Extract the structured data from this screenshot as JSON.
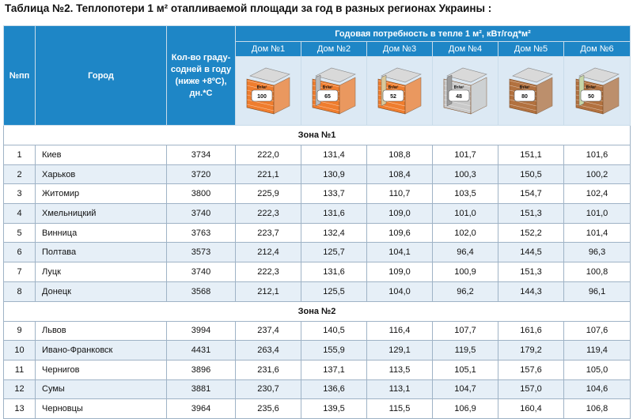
{
  "title": "Таблица №2. Теплопотери 1 м² отапливаемой площади за год в разных регионах Украины :",
  "header": {
    "col_num": "№пп",
    "col_city": "Город",
    "col_degree": "Кол-во граду-содней в году (ниже +8ºС), дн.*С",
    "col_demand": "Годовая потребность в тепле 1 м², кВт/год*м²",
    "houses": [
      {
        "label": "Дом №1",
        "value": "100",
        "unit": "Вт/м²",
        "wall_color": "#ef7d2e",
        "insulation_color": ""
      },
      {
        "label": "Дом №2",
        "value": "65",
        "unit": "Вт/м²",
        "wall_color": "#ef7d2e",
        "insulation_color": "#b9bcbe"
      },
      {
        "label": "Дом №3",
        "value": "52",
        "unit": "Вт/м²",
        "wall_color": "#ef7d2e",
        "insulation_color": "#d9c89a"
      },
      {
        "label": "Дом №4",
        "value": "48",
        "unit": "Вт/м²",
        "wall_color": "#c9c9c9",
        "insulation_color": "#9c9c9c"
      },
      {
        "label": "Дом №5",
        "value": "80",
        "unit": "Вт/м²",
        "wall_color": "#b2713f",
        "insulation_color": ""
      },
      {
        "label": "Дом №6",
        "value": "50",
        "unit": "Вт/м²",
        "wall_color": "#b2713f",
        "insulation_color": "#c7d7a8"
      }
    ]
  },
  "zones": [
    {
      "label": "Зона №1",
      "rows": [
        {
          "n": "1",
          "city": "Киев",
          "deg": "3734",
          "v": [
            "222,0",
            "131,4",
            "108,8",
            "101,7",
            "151,1",
            "101,6"
          ]
        },
        {
          "n": "2",
          "city": "Харьков",
          "deg": "3720",
          "v": [
            "221,1",
            "130,9",
            "108,4",
            "100,3",
            "150,5",
            "100,2"
          ]
        },
        {
          "n": "3",
          "city": "Житомир",
          "deg": "3800",
          "v": [
            "225,9",
            "133,7",
            "110,7",
            "103,5",
            "154,7",
            "102,4"
          ]
        },
        {
          "n": "4",
          "city": "Хмельницкий",
          "deg": "3740",
          "v": [
            "222,3",
            "131,6",
            "109,0",
            "101,0",
            "151,3",
            "101,0"
          ]
        },
        {
          "n": "5",
          "city": "Винница",
          "deg": "3763",
          "v": [
            "223,7",
            "132,4",
            "109,6",
            "102,0",
            "152,2",
            "101,4"
          ]
        },
        {
          "n": "6",
          "city": "Полтава",
          "deg": "3573",
          "v": [
            "212,4",
            "125,7",
            "104,1",
            "96,4",
            "144,5",
            "96,3"
          ]
        },
        {
          "n": "7",
          "city": "Луцк",
          "deg": "3740",
          "v": [
            "222,3",
            "131,6",
            "109,0",
            "100,9",
            "151,3",
            "100,8"
          ]
        },
        {
          "n": "8",
          "city": "Донецк",
          "deg": "3568",
          "v": [
            "212,1",
            "125,5",
            "104,0",
            "96,2",
            "144,3",
            "96,1"
          ]
        }
      ]
    },
    {
      "label": "Зона №2",
      "rows": [
        {
          "n": "9",
          "city": "Львов",
          "deg": "3994",
          "v": [
            "237,4",
            "140,5",
            "116,4",
            "107,7",
            "161,6",
            "107,6"
          ]
        },
        {
          "n": "10",
          "city": "Ивано-Франковск",
          "deg": "4431",
          "v": [
            "263,4",
            "155,9",
            "129,1",
            "119,5",
            "179,2",
            "119,4"
          ]
        },
        {
          "n": "11",
          "city": "Чернигов",
          "deg": "3896",
          "v": [
            "231,6",
            "137,1",
            "113,5",
            "105,1",
            "157,6",
            "105,0"
          ]
        },
        {
          "n": "12",
          "city": "Сумы",
          "deg": "3881",
          "v": [
            "230,7",
            "136,6",
            "113,1",
            "104,7",
            "157,0",
            "104,6"
          ]
        },
        {
          "n": "13",
          "city": "Черновцы",
          "deg": "3964",
          "v": [
            "235,6",
            "139,5",
            "115,5",
            "106,9",
            "160,4",
            "106,8"
          ]
        }
      ]
    }
  ]
}
